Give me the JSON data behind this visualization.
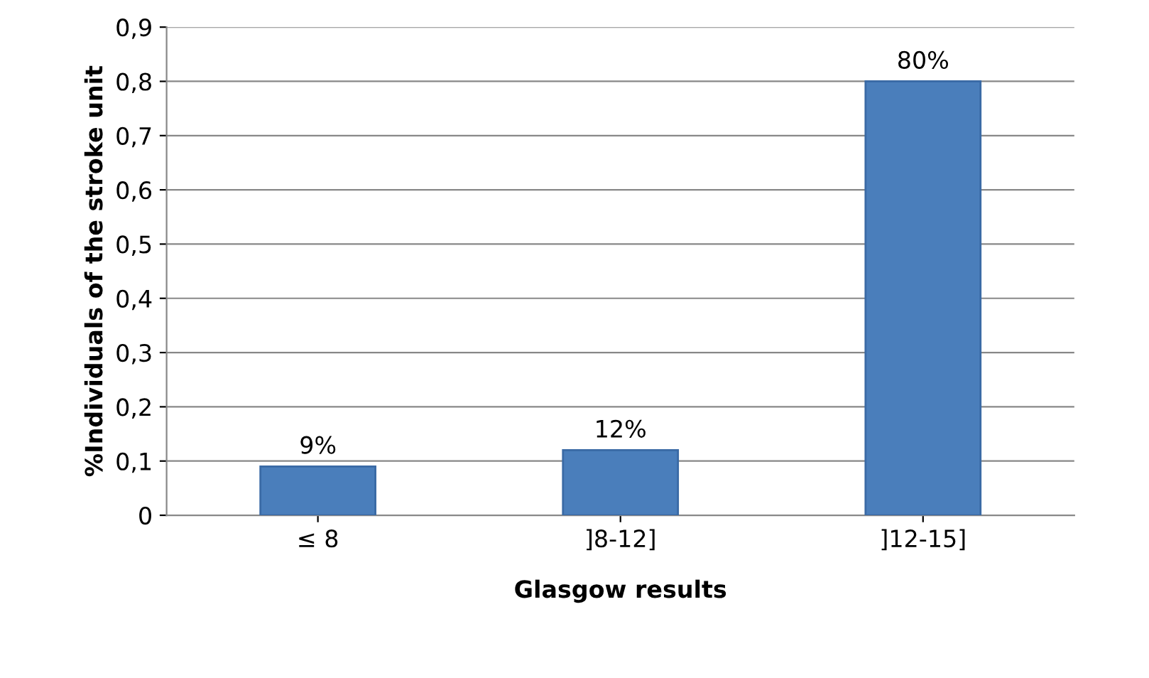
{
  "chart_data": {
    "type": "bar",
    "xlabel": "Glasgow results",
    "ylabel": "%Individuals of the stroke unit",
    "categories": [
      "≤ 8",
      "]8-12]",
      "]12-15]"
    ],
    "values": [
      0.09,
      0.12,
      0.8
    ],
    "value_labels": [
      "9%",
      "12%",
      "80%"
    ],
    "color": "#4a7ebb",
    "ylim": [
      0,
      0.9
    ],
    "yticks": [
      0,
      {
        "value": 0.1,
        "label": "0,1"
      },
      {
        "value": 0.2,
        "label": "0,2"
      },
      {
        "value": 0.3,
        "label": "0,3"
      },
      {
        "value": 0.4,
        "label": "0,4"
      },
      {
        "value": 0.5,
        "label": "0,5"
      },
      {
        "value": 0.6,
        "label": "0,6"
      },
      {
        "value": 0.7,
        "label": "0,7"
      },
      {
        "value": 0.8,
        "label": "0,8"
      },
      {
        "value": 0.9,
        "label": "0,9"
      }
    ],
    "grid": "y"
  }
}
